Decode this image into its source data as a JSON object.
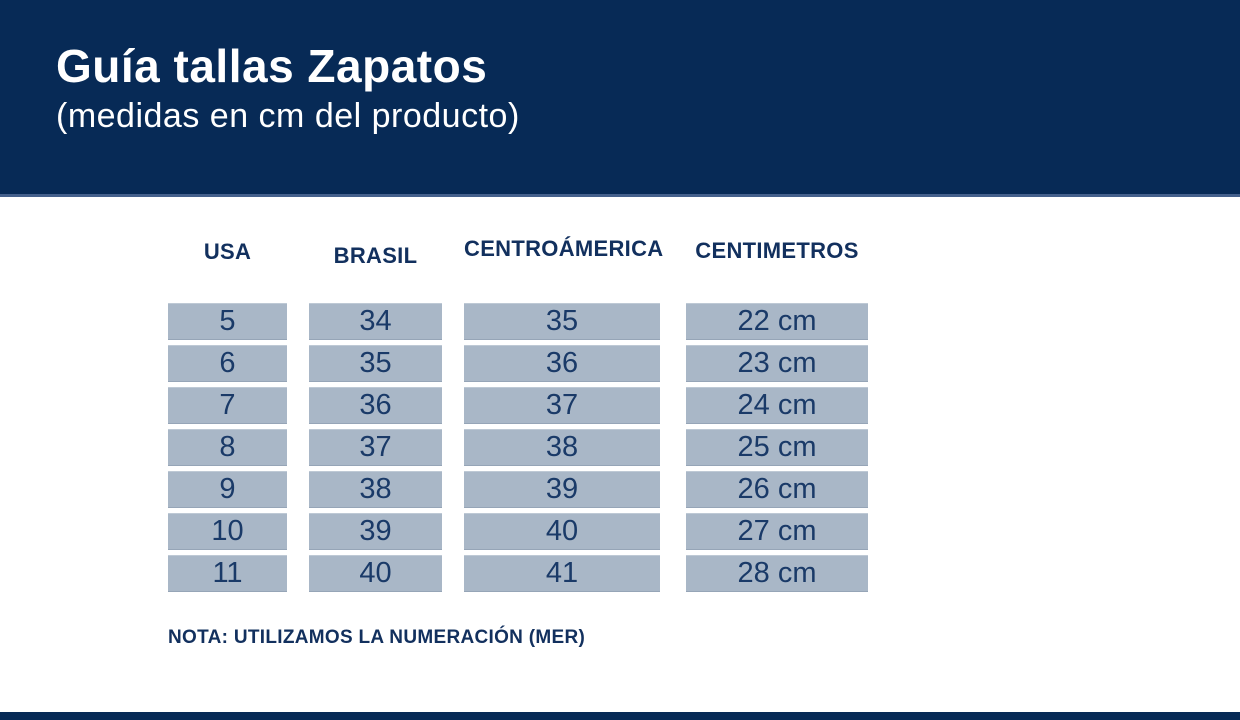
{
  "header": {
    "title": "Guía tallas Zapatos",
    "subtitle": "(medidas en cm del producto)"
  },
  "colors": {
    "banner_navy": "#072a56",
    "banner_edge": "#44608c",
    "cell_bg": "#a9b7c7",
    "cell_text": "#1a3a68",
    "label_text": "#12305e"
  },
  "note": "NOTA: UTILIZAMOS LA NUMERACIÓN (MER)",
  "chart_data": {
    "type": "table",
    "title": "Guía tallas Zapatos",
    "subtitle": "(medidas en cm del producto)",
    "columns": [
      "USA",
      "BRASIL",
      "CENTROÁMERICA",
      "CENTIMETROS"
    ],
    "rows": [
      [
        "5",
        "34",
        "35",
        "22 cm"
      ],
      [
        "6",
        "35",
        "36",
        "23 cm"
      ],
      [
        "7",
        "36",
        "37",
        "24 cm"
      ],
      [
        "8",
        "37",
        "38",
        "25 cm"
      ],
      [
        "9",
        "38",
        "39",
        "26 cm"
      ],
      [
        "10",
        "39",
        "40",
        "27 cm"
      ],
      [
        "11",
        "40",
        "41",
        "28 cm"
      ]
    ],
    "note": "NOTA: UTILIZAMOS LA NUMERACIÓN (MER)",
    "legend": false,
    "grid": false
  }
}
